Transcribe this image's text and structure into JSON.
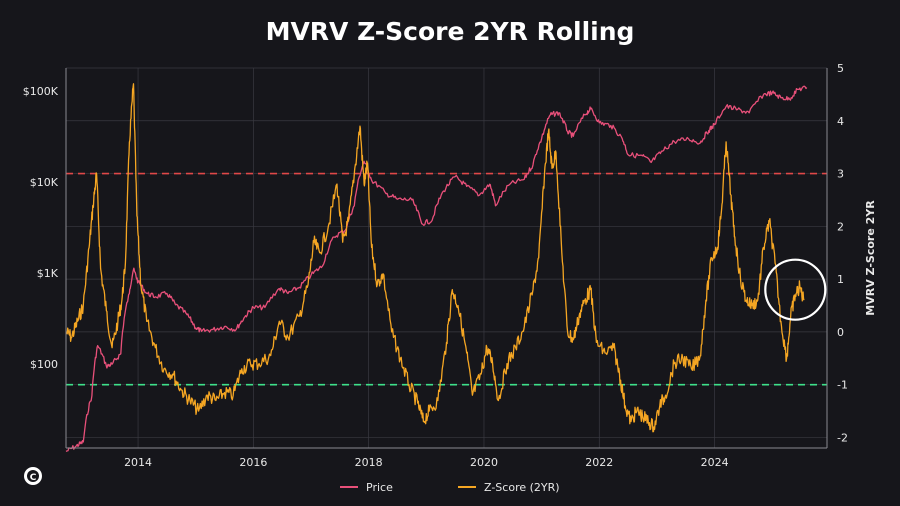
{
  "chart_data": {
    "type": "line",
    "title": "MVRV Z-Score 2YR Rolling",
    "y2label": "MVRV Z-Score 2YR",
    "x_ticks": [
      "2014",
      "2016",
      "2018",
      "2020",
      "2022",
      "2024"
    ],
    "x_range": [
      2012.75,
      2025.95
    ],
    "y_left": {
      "scale": "log",
      "ticks": [
        "$100",
        "$1K",
        "$10K",
        "$100K"
      ],
      "tick_values": [
        100,
        1000,
        10000,
        100000
      ],
      "range": [
        12,
        180000
      ]
    },
    "y_right": {
      "ticks": [
        "-2",
        "-1",
        "0",
        "1",
        "2",
        "3",
        "4",
        "5"
      ],
      "tick_values": [
        -2,
        -1,
        0,
        1,
        2,
        3,
        4,
        5
      ],
      "range": [
        -2.2,
        5
      ]
    },
    "reference_lines": [
      {
        "axis": "right",
        "value": 3,
        "color": "#e04848",
        "style": "dashed"
      },
      {
        "axis": "right",
        "value": -1,
        "color": "#3ee08a",
        "style": "dashed"
      }
    ],
    "grid": true,
    "legend_position": "bottom-center",
    "series": [
      {
        "name": "Price",
        "axis": "left",
        "color": "#e8507a",
        "points": [
          [
            2012.75,
            11
          ],
          [
            2012.92,
            12.5
          ],
          [
            2013.05,
            14
          ],
          [
            2013.2,
            45
          ],
          [
            2013.3,
            160
          ],
          [
            2013.45,
            95
          ],
          [
            2013.55,
            100
          ],
          [
            2013.7,
            130
          ],
          [
            2013.85,
            600
          ],
          [
            2013.92,
            1100
          ],
          [
            2014.0,
            800
          ],
          [
            2014.15,
            600
          ],
          [
            2014.3,
            550
          ],
          [
            2014.5,
            600
          ],
          [
            2014.65,
            450
          ],
          [
            2014.85,
            350
          ],
          [
            2015.0,
            250
          ],
          [
            2015.1,
            230
          ],
          [
            2015.3,
            240
          ],
          [
            2015.5,
            260
          ],
          [
            2015.7,
            240
          ],
          [
            2015.85,
            330
          ],
          [
            2016.0,
            420
          ],
          [
            2016.2,
            420
          ],
          [
            2016.45,
            680
          ],
          [
            2016.6,
            600
          ],
          [
            2016.8,
            700
          ],
          [
            2017.0,
            950
          ],
          [
            2017.2,
            1200
          ],
          [
            2017.4,
            2500
          ],
          [
            2017.6,
            3000
          ],
          [
            2017.75,
            5500
          ],
          [
            2017.92,
            17000
          ],
          [
            2018.05,
            10500
          ],
          [
            2018.3,
            7500
          ],
          [
            2018.5,
            6500
          ],
          [
            2018.75,
            6400
          ],
          [
            2018.92,
            3500
          ],
          [
            2019.1,
            3800
          ],
          [
            2019.3,
            8000
          ],
          [
            2019.5,
            11500
          ],
          [
            2019.7,
            9000
          ],
          [
            2019.92,
            7200
          ],
          [
            2020.1,
            9500
          ],
          [
            2020.2,
            5500
          ],
          [
            2020.45,
            9500
          ],
          [
            2020.7,
            10800
          ],
          [
            2020.85,
            15500
          ],
          [
            2021.0,
            30000
          ],
          [
            2021.15,
            55000
          ],
          [
            2021.3,
            58000
          ],
          [
            2021.45,
            36000
          ],
          [
            2021.55,
            32000
          ],
          [
            2021.75,
            55000
          ],
          [
            2021.85,
            64000
          ],
          [
            2022.0,
            45000
          ],
          [
            2022.2,
            42000
          ],
          [
            2022.4,
            30000
          ],
          [
            2022.5,
            20000
          ],
          [
            2022.75,
            19500
          ],
          [
            2022.9,
            16500
          ],
          [
            2023.1,
            22000
          ],
          [
            2023.3,
            28000
          ],
          [
            2023.55,
            30000
          ],
          [
            2023.75,
            27000
          ],
          [
            2023.9,
            37000
          ],
          [
            2024.0,
            43000
          ],
          [
            2024.2,
            68000
          ],
          [
            2024.4,
            63000
          ],
          [
            2024.6,
            58000
          ],
          [
            2024.85,
            92000
          ],
          [
            2025.0,
            96000
          ],
          [
            2025.15,
            85000
          ],
          [
            2025.3,
            82000
          ],
          [
            2025.45,
            105000
          ],
          [
            2025.6,
            110000
          ]
        ]
      },
      {
        "name": "Z-Score (2YR)",
        "axis": "right",
        "color": "#f5a623",
        "points": [
          [
            2012.75,
            0
          ],
          [
            2012.85,
            -0.1
          ],
          [
            2012.95,
            0.2
          ],
          [
            2013.05,
            0.5
          ],
          [
            2013.15,
            1.6
          ],
          [
            2013.22,
            2.4
          ],
          [
            2013.28,
            3.0
          ],
          [
            2013.35,
            1.2
          ],
          [
            2013.45,
            0.4
          ],
          [
            2013.55,
            -0.3
          ],
          [
            2013.65,
            0.2
          ],
          [
            2013.72,
            0.6
          ],
          [
            2013.78,
            1.3
          ],
          [
            2013.85,
            3.6
          ],
          [
            2013.92,
            4.7
          ],
          [
            2013.98,
            2.2
          ],
          [
            2014.05,
            0.9
          ],
          [
            2014.15,
            0.2
          ],
          [
            2014.3,
            -0.3
          ],
          [
            2014.45,
            -0.7
          ],
          [
            2014.6,
            -0.8
          ],
          [
            2014.75,
            -1.1
          ],
          [
            2014.9,
            -1.3
          ],
          [
            2015.05,
            -1.5
          ],
          [
            2015.2,
            -1.2
          ],
          [
            2015.35,
            -1.3
          ],
          [
            2015.5,
            -1.15
          ],
          [
            2015.65,
            -1.2
          ],
          [
            2015.8,
            -0.7
          ],
          [
            2015.95,
            -0.6
          ],
          [
            2016.1,
            -0.6
          ],
          [
            2016.3,
            -0.45
          ],
          [
            2016.45,
            0.2
          ],
          [
            2016.6,
            -0.1
          ],
          [
            2016.8,
            0.3
          ],
          [
            2016.95,
            0.9
          ],
          [
            2017.05,
            1.7
          ],
          [
            2017.15,
            1.5
          ],
          [
            2017.3,
            2.0
          ],
          [
            2017.45,
            2.8
          ],
          [
            2017.55,
            1.7
          ],
          [
            2017.65,
            2.1
          ],
          [
            2017.75,
            3.0
          ],
          [
            2017.85,
            3.9
          ],
          [
            2017.92,
            2.8
          ],
          [
            2017.98,
            3.2
          ],
          [
            2018.05,
            1.6
          ],
          [
            2018.15,
            0.9
          ],
          [
            2018.25,
            1.1
          ],
          [
            2018.4,
            0.0
          ],
          [
            2018.55,
            -0.5
          ],
          [
            2018.7,
            -1.0
          ],
          [
            2018.85,
            -1.35
          ],
          [
            2018.95,
            -1.7
          ],
          [
            2019.05,
            -1.5
          ],
          [
            2019.2,
            -1.3
          ],
          [
            2019.35,
            -0.2
          ],
          [
            2019.45,
            0.8
          ],
          [
            2019.55,
            0.5
          ],
          [
            2019.7,
            -0.4
          ],
          [
            2019.8,
            -1.2
          ],
          [
            2019.95,
            -0.8
          ],
          [
            2020.05,
            -0.3
          ],
          [
            2020.15,
            -0.6
          ],
          [
            2020.25,
            -1.3
          ],
          [
            2020.4,
            -0.6
          ],
          [
            2020.55,
            -0.3
          ],
          [
            2020.7,
            0.1
          ],
          [
            2020.85,
            0.8
          ],
          [
            2020.95,
            1.4
          ],
          [
            2021.05,
            3.0
          ],
          [
            2021.12,
            3.8
          ],
          [
            2021.18,
            3.1
          ],
          [
            2021.25,
            3.4
          ],
          [
            2021.35,
            1.5
          ],
          [
            2021.45,
            0.0
          ],
          [
            2021.55,
            -0.15
          ],
          [
            2021.65,
            0.3
          ],
          [
            2021.75,
            0.6
          ],
          [
            2021.85,
            0.8
          ],
          [
            2021.95,
            -0.2
          ],
          [
            2022.1,
            -0.4
          ],
          [
            2022.25,
            -0.3
          ],
          [
            2022.35,
            -0.8
          ],
          [
            2022.45,
            -1.4
          ],
          [
            2022.55,
            -1.7
          ],
          [
            2022.65,
            -1.5
          ],
          [
            2022.75,
            -1.6
          ],
          [
            2022.85,
            -1.7
          ],
          [
            2022.95,
            -1.8
          ],
          [
            2023.05,
            -1.4
          ],
          [
            2023.15,
            -1.2
          ],
          [
            2023.3,
            -0.6
          ],
          [
            2023.45,
            -0.5
          ],
          [
            2023.6,
            -0.7
          ],
          [
            2023.75,
            -0.45
          ],
          [
            2023.85,
            0.6
          ],
          [
            2023.95,
            1.4
          ],
          [
            2024.05,
            1.6
          ],
          [
            2024.12,
            2.3
          ],
          [
            2024.2,
            3.6
          ],
          [
            2024.28,
            2.6
          ],
          [
            2024.35,
            1.8
          ],
          [
            2024.45,
            1.0
          ],
          [
            2024.55,
            0.6
          ],
          [
            2024.65,
            0.5
          ],
          [
            2024.75,
            0.6
          ],
          [
            2024.85,
            1.6
          ],
          [
            2024.95,
            2.1
          ],
          [
            2025.05,
            1.3
          ],
          [
            2025.15,
            0.2
          ],
          [
            2025.25,
            -0.5
          ],
          [
            2025.32,
            0.3
          ],
          [
            2025.4,
            0.7
          ],
          [
            2025.48,
            0.85
          ],
          [
            2025.55,
            0.6
          ]
        ]
      }
    ]
  },
  "highlight_circle": {
    "axis": "right",
    "x": 2025.4,
    "y": 0.8
  },
  "legend": [
    {
      "label": "Price",
      "color": "#e8507a"
    },
    {
      "label": "Z-Score (2YR)",
      "color": "#f5a623"
    }
  ],
  "colors": {
    "background": "#16161b",
    "grid": "#3a3a42",
    "text": "#e8e8e8"
  },
  "logo": {
    "glyph": "C"
  }
}
